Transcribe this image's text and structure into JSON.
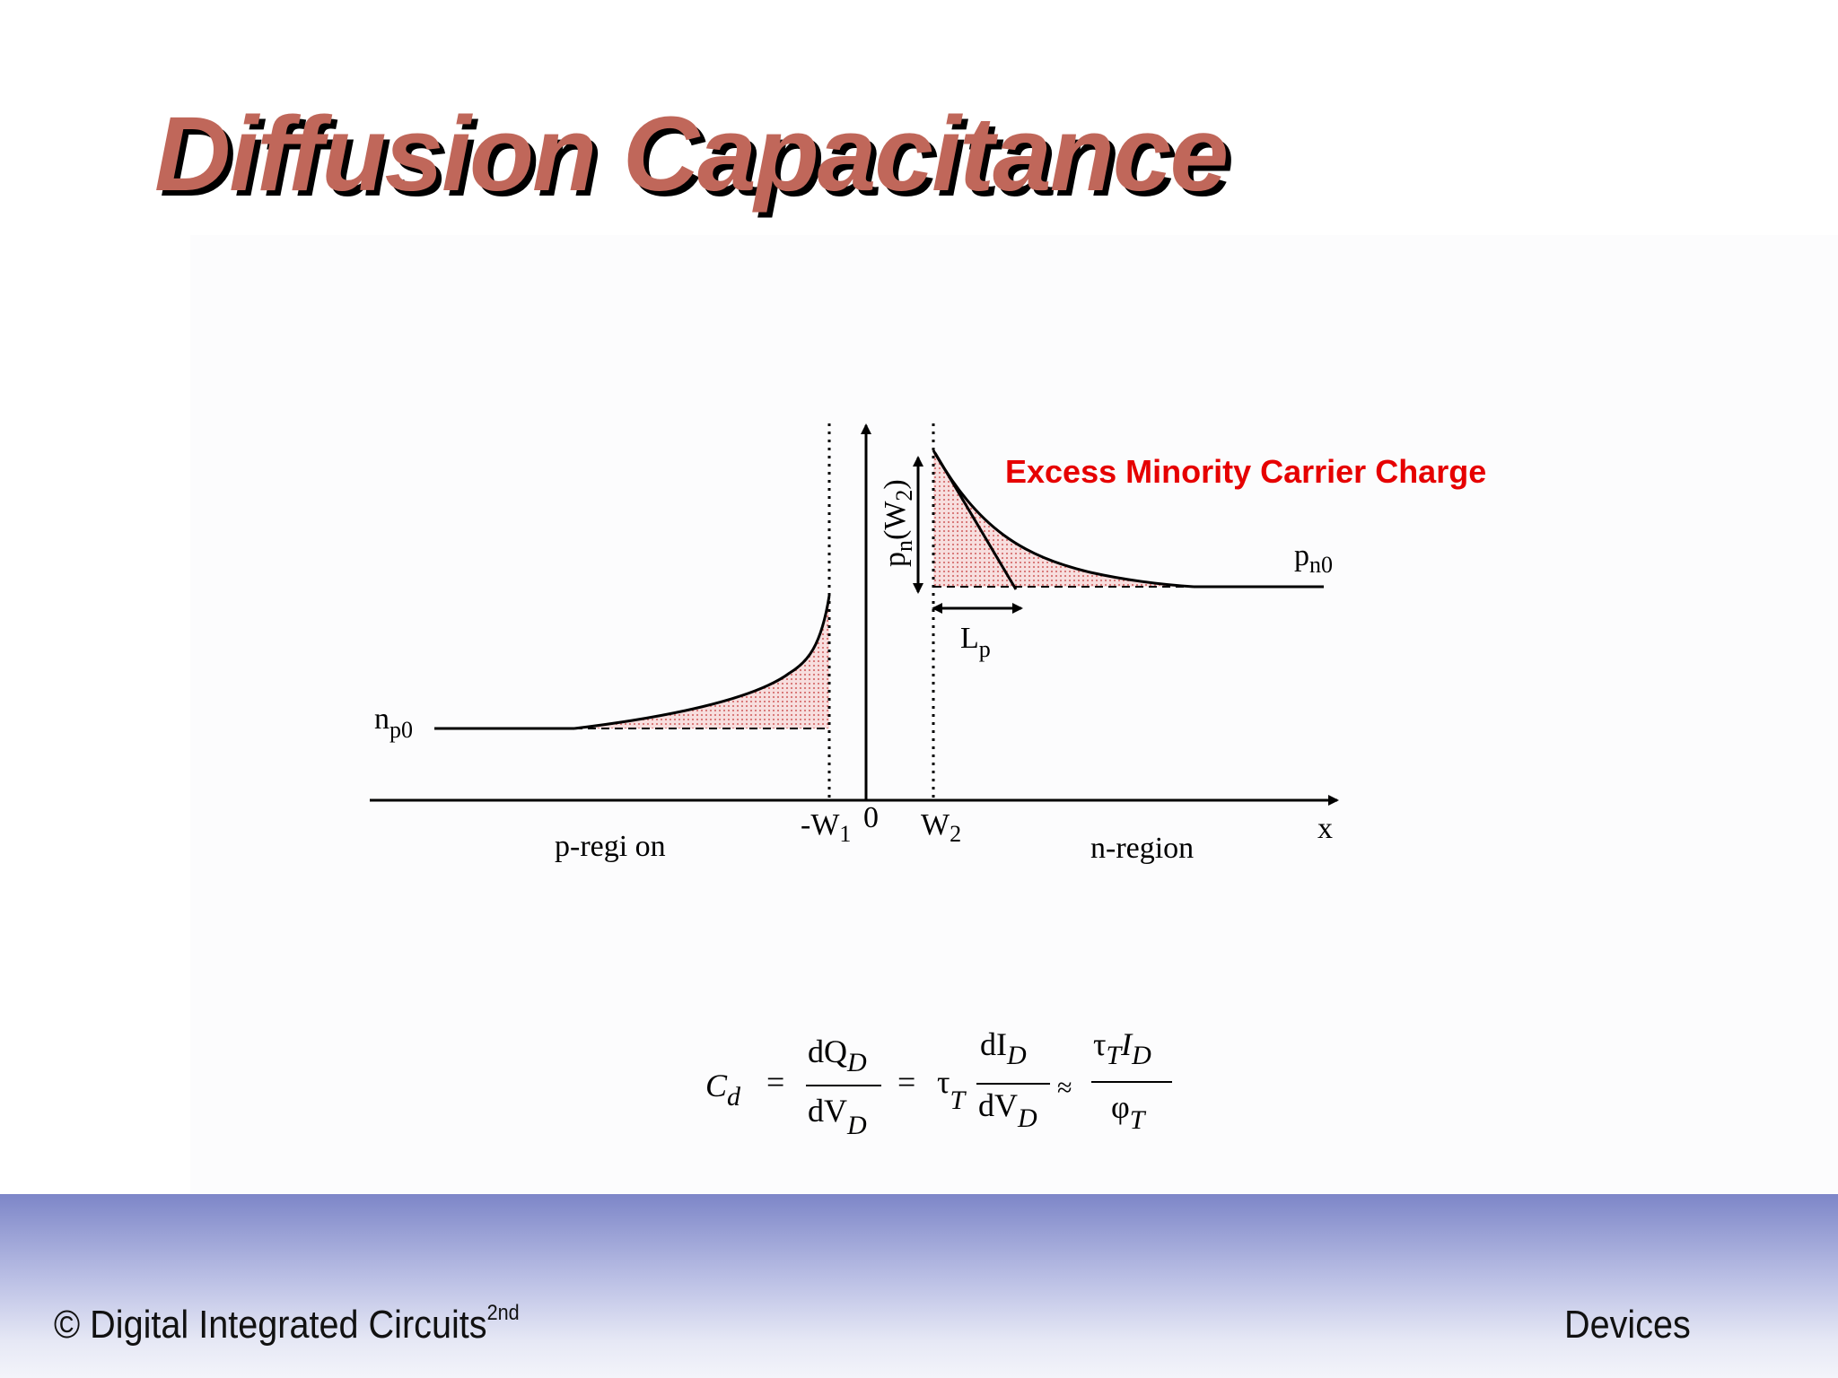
{
  "title": "Diffusion Capacitance",
  "diagram": {
    "annotation": "Excess Minority Carrier Charge",
    "annotation_color": "#e60000",
    "title_color": "#c0675a",
    "fill_color": "#e58a8a",
    "labels": {
      "np0_main": "n",
      "np0_sub": "p0",
      "pn0_main": "p",
      "pn0_sub": "n0",
      "pnw2": "p",
      "pnw2_sub": "n",
      "pnw2_open": "(W",
      "pnw2_sub2": "2",
      "pnw2_close": ")",
      "lp_main": "L",
      "lp_sub": "p",
      "neg_w1_main": "-W",
      "neg_w1_sub": "1",
      "zero": "0",
      "w2_main": "W",
      "w2_sub": "2",
      "x_axis": "x",
      "p_region": "p-regi on",
      "n_region": "n-region"
    }
  },
  "equation": {
    "cd": "C",
    "cd_sub": "d",
    "eq1": "=",
    "frac1_num": "dQ",
    "frac1_num_sub": "D",
    "frac1_den": "dV",
    "frac1_den_sub": "D",
    "eq2": "=",
    "tau": "τ",
    "tau_sub": "T",
    "frac2_num": "dI",
    "frac2_num_sub": "D",
    "frac2_den": "dV",
    "frac2_den_sub": "D",
    "approx": "≈",
    "frac3_num_tau": "τ",
    "frac3_num_sub": "T",
    "frac3_num_i": "I",
    "frac3_num_i_sub": "D",
    "frac3_den": "φ",
    "frac3_den_sub": "T"
  },
  "footer": {
    "left": "© Digital Integrated Circuits",
    "left_sup": "2nd",
    "right": "Devices"
  }
}
